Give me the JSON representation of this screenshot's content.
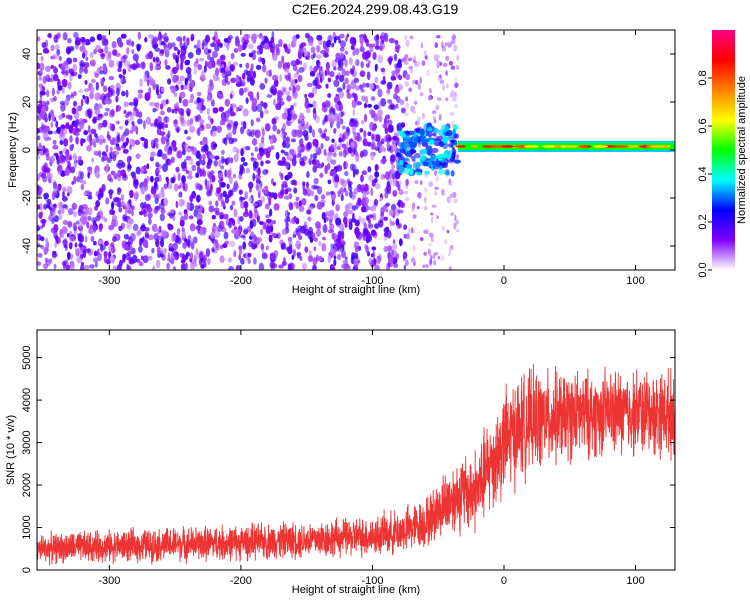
{
  "title": "C2E6.2024.299.08.43.G19",
  "chart_data": [
    {
      "type": "heatmap",
      "xlabel": "Height of straight line (km)",
      "ylabel": "Frequency (Hz)",
      "xlim": [
        -355,
        130
      ],
      "ylim": [
        -50,
        50
      ],
      "xticks": [
        -300,
        -200,
        -100,
        0,
        100
      ],
      "yticks": [
        -40,
        -20,
        0,
        20,
        40
      ],
      "colorbar": {
        "label": "Normalized spectral amplitude",
        "range": [
          0,
          1
        ],
        "ticks": [
          0.0,
          0.2,
          0.4,
          0.6,
          0.8
        ],
        "tick_labels": [
          "0.0",
          "0.2",
          "0.4",
          "0.6",
          "0.8"
        ],
        "colors": [
          "#ffffff",
          "#8000ff",
          "#0000ff",
          "#00ffff",
          "#00ff00",
          "#ffff00",
          "#ff8000",
          "#ff0000",
          "#ff0080"
        ]
      },
      "regions": [
        {
          "x_range": [
            -355,
            -75
          ],
          "y_range": [
            -50,
            48
          ],
          "amplitude": [
            0.05,
            0.2
          ],
          "description": "noise"
        },
        {
          "x_range": [
            -75,
            -35
          ],
          "y_range": [
            -50,
            48
          ],
          "amplitude": [
            0.02,
            0.1
          ],
          "description": "sparse noise"
        },
        {
          "x_range": [
            -80,
            -35
          ],
          "y_range": [
            -10,
            10
          ],
          "amplitude": [
            0.2,
            0.4
          ],
          "description": "onset"
        },
        {
          "x_range": [
            -35,
            130
          ],
          "y_range": [
            0,
            3
          ],
          "amplitude": [
            0.6,
            0.95
          ],
          "description": "signal tone"
        }
      ]
    },
    {
      "type": "line",
      "xlabel": "Height of straight line (km)",
      "ylabel": "SNR (10 * v/v)",
      "xlim": [
        -355,
        130
      ],
      "ylim": [
        0,
        5650
      ],
      "xticks": [
        -300,
        -200,
        -100,
        0,
        100
      ],
      "yticks": [
        0,
        1000,
        2000,
        3000,
        4000,
        5000
      ],
      "color": "#ee3333",
      "envelope": {
        "x": [
          -355,
          -300,
          -250,
          -200,
          -150,
          -100,
          -80,
          -60,
          -50,
          -40,
          -30,
          -20,
          -10,
          0,
          10,
          20,
          40,
          60,
          80,
          100,
          130
        ],
        "mean": [
          500,
          560,
          600,
          650,
          720,
          800,
          900,
          1100,
          1400,
          1700,
          1800,
          1900,
          2500,
          3000,
          3300,
          3500,
          3600,
          3650,
          3700,
          3700,
          3700
        ],
        "spread": [
          420,
          450,
          480,
          500,
          520,
          560,
          620,
          700,
          800,
          1000,
          1100,
          1200,
          1400,
          1500,
          1500,
          1400,
          1300,
          1200,
          1200,
          1200,
          1200
        ]
      }
    }
  ]
}
